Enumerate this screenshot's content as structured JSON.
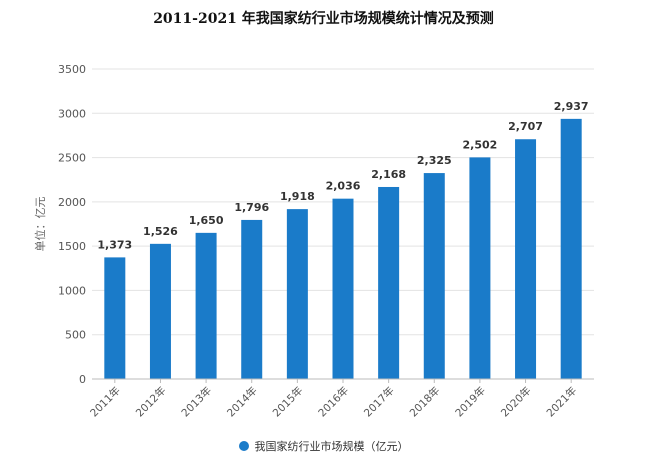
{
  "chart_data": {
    "type": "bar",
    "title": "2011-2021 年我国家纺行业市场规模统计情况及预测",
    "ylabel": "单位：亿元",
    "ylim": [
      0,
      3500
    ],
    "yticks": [
      0,
      500,
      1000,
      1500,
      2000,
      2500,
      3000,
      3500
    ],
    "categories": [
      "2011年",
      "2012年",
      "2013年",
      "2014年",
      "2015年",
      "2016年",
      "2017年",
      "2018年",
      "2019年",
      "2020年",
      "2021年"
    ],
    "values": [
      1373,
      1526,
      1650,
      1796,
      1918,
      2036,
      2168,
      2325,
      2502,
      2707,
      2937
    ],
    "data_labels": [
      "1,373",
      "1,526",
      "1,650",
      "1,796",
      "1,918",
      "2,036",
      "2,168",
      "2,325",
      "2,502",
      "2,707",
      "2,937"
    ],
    "series_name": "我国家纺行业市场规模（亿元）",
    "bar_color": "#1a7bc9",
    "grid": true,
    "legend_position": "bottom"
  }
}
